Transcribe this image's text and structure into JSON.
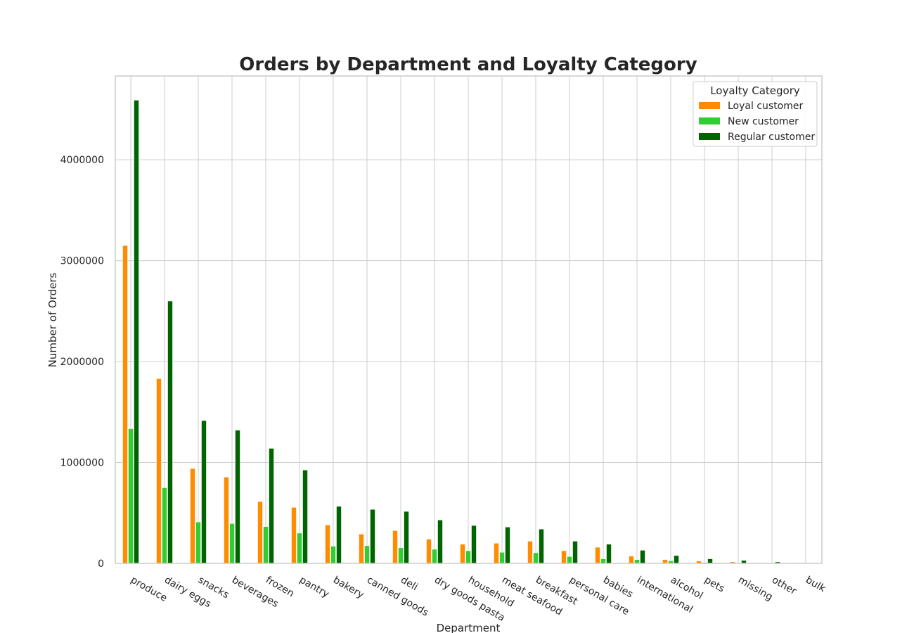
{
  "chart_data": {
    "type": "bar",
    "title": "Orders by Department and Loyalty Category",
    "xlabel": "Department",
    "ylabel": "Number of Orders",
    "ylim": [
      0,
      4830000
    ],
    "yticks": [
      0,
      1000000,
      2000000,
      3000000,
      4000000
    ],
    "ytick_labels": [
      "0",
      "1000000",
      "2000000",
      "3000000",
      "4000000"
    ],
    "grid": true,
    "legend_title": "Loyalty Category",
    "legend_position": "top-right",
    "categories": [
      "produce",
      "dairy eggs",
      "snacks",
      "beverages",
      "frozen",
      "pantry",
      "bakery",
      "canned goods",
      "deli",
      "dry goods pasta",
      "household",
      "meat seafood",
      "breakfast",
      "personal care",
      "babies",
      "international",
      "alcohol",
      "pets",
      "missing",
      "other",
      "bulk"
    ],
    "series": [
      {
        "name": "Loyal customer",
        "color": "#ff8c00",
        "values": [
          3150000,
          1830000,
          940000,
          855000,
          612000,
          555000,
          380000,
          290000,
          325000,
          240000,
          190000,
          200000,
          220000,
          125000,
          160000,
          72000,
          38000,
          24000,
          15000,
          6000,
          3000
        ]
      },
      {
        "name": "New customer",
        "color": "#32cd32",
        "values": [
          1335000,
          750000,
          410000,
          395000,
          365000,
          300000,
          170000,
          175000,
          155000,
          140000,
          125000,
          110000,
          105000,
          68000,
          45000,
          38000,
          25000,
          10000,
          6000,
          4000,
          2000
        ]
      },
      {
        "name": "Regular customer",
        "color": "#006400",
        "values": [
          4590000,
          2600000,
          1415000,
          1320000,
          1140000,
          925000,
          565000,
          535000,
          515000,
          430000,
          375000,
          360000,
          340000,
          220000,
          190000,
          130000,
          78000,
          45000,
          30000,
          15000,
          5000
        ]
      }
    ]
  }
}
